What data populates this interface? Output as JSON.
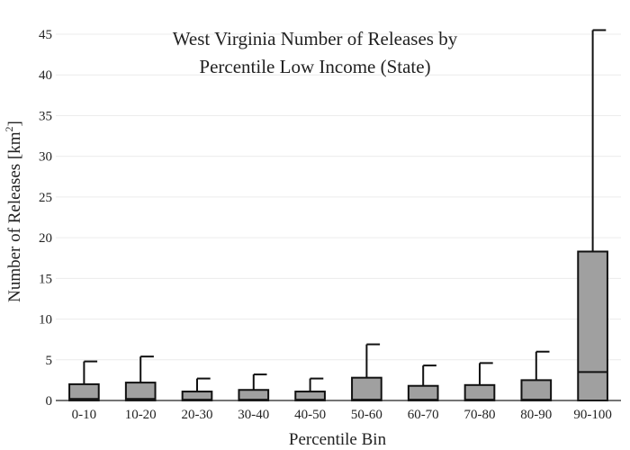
{
  "chart_data": {
    "type": "box",
    "title_lines": [
      "West Virginia Number of Releases by",
      "Percentile Low Income (State)"
    ],
    "xlabel": "Percentile Bin",
    "ylabel": "Number of Releases  [km",
    "ylabel_superscript": "2",
    "ylabel_close": "]",
    "ylim": [
      0,
      45
    ],
    "yticks": [
      0,
      5,
      10,
      15,
      20,
      25,
      30,
      35,
      40,
      45
    ],
    "grid": true,
    "box_color": "#a0a0a0",
    "categories": [
      "0-10",
      "10-20",
      "20-30",
      "30-40",
      "40-50",
      "50-60",
      "60-70",
      "70-80",
      "80-90",
      "90-100"
    ],
    "boxes": [
      {
        "q1": 0,
        "median": 0.2,
        "q3": 2.0,
        "whisker_high": 4.8
      },
      {
        "q1": 0,
        "median": 0.2,
        "q3": 2.2,
        "whisker_high": 5.4
      },
      {
        "q1": 0,
        "median": 0.1,
        "q3": 1.1,
        "whisker_high": 2.7
      },
      {
        "q1": 0,
        "median": 0.1,
        "q3": 1.3,
        "whisker_high": 3.2
      },
      {
        "q1": 0,
        "median": 0.1,
        "q3": 1.1,
        "whisker_high": 2.7
      },
      {
        "q1": 0,
        "median": 0.1,
        "q3": 2.8,
        "whisker_high": 6.9
      },
      {
        "q1": 0,
        "median": 0.1,
        "q3": 1.8,
        "whisker_high": 4.3
      },
      {
        "q1": 0,
        "median": 0.1,
        "q3": 1.9,
        "whisker_high": 4.6
      },
      {
        "q1": 0,
        "median": 0.1,
        "q3": 2.5,
        "whisker_high": 6.0
      },
      {
        "q1": 0,
        "median": 3.5,
        "q3": 18.3,
        "whisker_high": 45.5
      }
    ]
  }
}
